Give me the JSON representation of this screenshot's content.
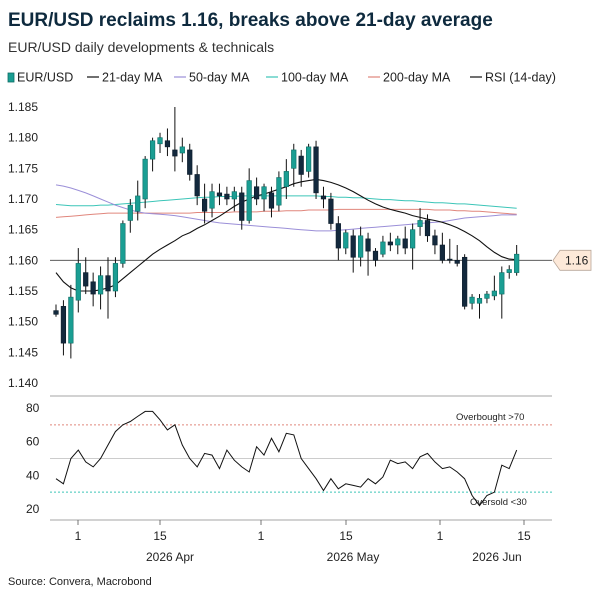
{
  "title": "EUR/USD reclaims 1.16, breaks above 21-day average",
  "subtitle": "EUR/USD daily developments & technicals",
  "source": "Source: Convera, Macrobond",
  "chart_data": [
    {
      "type": "candlestick",
      "legend": [
        {
          "name": "EUR/USD",
          "color": "#1a9e93",
          "kind": "box"
        },
        {
          "name": "21-day MA",
          "color": "#111111",
          "kind": "line"
        },
        {
          "name": "50-day MA",
          "color": "#9b8fd8",
          "kind": "line"
        },
        {
          "name": "100-day MA",
          "color": "#3cc5b8",
          "kind": "line"
        },
        {
          "name": "200-day MA",
          "color": "#e0867c",
          "kind": "line"
        },
        {
          "name": "RSI (14-day)",
          "color": "#111111",
          "kind": "line"
        }
      ],
      "y_ticks": [
        "1.185",
        "1.180",
        "1.175",
        "1.170",
        "1.165",
        "1.160",
        "1.155",
        "1.150",
        "1.145",
        "1.140"
      ],
      "ylim": [
        1.14,
        1.185
      ],
      "reference_line": 1.16,
      "last_value_label": "1.16",
      "candles": [
        {
          "o": 1.1518,
          "h": 1.1528,
          "l": 1.1508,
          "c": 1.1512
        },
        {
          "o": 1.1525,
          "h": 1.1535,
          "l": 1.1445,
          "c": 1.1465
        },
        {
          "o": 1.1465,
          "h": 1.156,
          "l": 1.144,
          "c": 1.154
        },
        {
          "o": 1.1535,
          "h": 1.162,
          "l": 1.1515,
          "c": 1.1595
        },
        {
          "o": 1.158,
          "h": 1.1605,
          "l": 1.1545,
          "c": 1.1558
        },
        {
          "o": 1.1565,
          "h": 1.158,
          "l": 1.1525,
          "c": 1.1545
        },
        {
          "o": 1.1545,
          "h": 1.159,
          "l": 1.152,
          "c": 1.1575
        },
        {
          "o": 1.1575,
          "h": 1.1605,
          "l": 1.1505,
          "c": 1.155
        },
        {
          "o": 1.155,
          "h": 1.1605,
          "l": 1.154,
          "c": 1.1595
        },
        {
          "o": 1.1595,
          "h": 1.1665,
          "l": 1.1588,
          "c": 1.166
        },
        {
          "o": 1.1665,
          "h": 1.17,
          "l": 1.1645,
          "c": 1.169
        },
        {
          "o": 1.168,
          "h": 1.173,
          "l": 1.1665,
          "c": 1.1705
        },
        {
          "o": 1.17,
          "h": 1.177,
          "l": 1.1685,
          "c": 1.1765
        },
        {
          "o": 1.1765,
          "h": 1.18,
          "l": 1.1745,
          "c": 1.1795
        },
        {
          "o": 1.179,
          "h": 1.1808,
          "l": 1.1775,
          "c": 1.18
        },
        {
          "o": 1.1795,
          "h": 1.1815,
          "l": 1.177,
          "c": 1.1785
        },
        {
          "o": 1.178,
          "h": 1.185,
          "l": 1.1745,
          "c": 1.177
        },
        {
          "o": 1.1775,
          "h": 1.18,
          "l": 1.176,
          "c": 1.1785
        },
        {
          "o": 1.178,
          "h": 1.179,
          "l": 1.173,
          "c": 1.174
        },
        {
          "o": 1.174,
          "h": 1.1755,
          "l": 1.169,
          "c": 1.1705
        },
        {
          "o": 1.17,
          "h": 1.1725,
          "l": 1.166,
          "c": 1.168
        },
        {
          "o": 1.1685,
          "h": 1.1725,
          "l": 1.167,
          "c": 1.1712
        },
        {
          "o": 1.171,
          "h": 1.1725,
          "l": 1.169,
          "c": 1.1705
        },
        {
          "o": 1.1708,
          "h": 1.172,
          "l": 1.169,
          "c": 1.17
        },
        {
          "o": 1.17,
          "h": 1.172,
          "l": 1.168,
          "c": 1.1712
        },
        {
          "o": 1.171,
          "h": 1.172,
          "l": 1.165,
          "c": 1.1665
        },
        {
          "o": 1.1665,
          "h": 1.175,
          "l": 1.166,
          "c": 1.173
        },
        {
          "o": 1.172,
          "h": 1.1735,
          "l": 1.169,
          "c": 1.17
        },
        {
          "o": 1.17,
          "h": 1.1725,
          "l": 1.168,
          "c": 1.172
        },
        {
          "o": 1.171,
          "h": 1.172,
          "l": 1.167,
          "c": 1.1685
        },
        {
          "o": 1.169,
          "h": 1.1745,
          "l": 1.168,
          "c": 1.1735
        },
        {
          "o": 1.172,
          "h": 1.1765,
          "l": 1.17,
          "c": 1.1745
        },
        {
          "o": 1.175,
          "h": 1.179,
          "l": 1.172,
          "c": 1.178
        },
        {
          "o": 1.177,
          "h": 1.178,
          "l": 1.172,
          "c": 1.174
        },
        {
          "o": 1.1745,
          "h": 1.179,
          "l": 1.1735,
          "c": 1.1785
        },
        {
          "o": 1.1785,
          "h": 1.1795,
          "l": 1.17,
          "c": 1.171
        },
        {
          "o": 1.1705,
          "h": 1.172,
          "l": 1.1685,
          "c": 1.17
        },
        {
          "o": 1.17,
          "h": 1.171,
          "l": 1.165,
          "c": 1.166
        },
        {
          "o": 1.166,
          "h": 1.1672,
          "l": 1.16,
          "c": 1.162
        },
        {
          "o": 1.162,
          "h": 1.165,
          "l": 1.161,
          "c": 1.1645
        },
        {
          "o": 1.164,
          "h": 1.165,
          "l": 1.158,
          "c": 1.1605
        },
        {
          "o": 1.1605,
          "h": 1.1655,
          "l": 1.159,
          "c": 1.164
        },
        {
          "o": 1.1635,
          "h": 1.1645,
          "l": 1.1575,
          "c": 1.1615
        },
        {
          "o": 1.1615,
          "h": 1.162,
          "l": 1.159,
          "c": 1.16
        },
        {
          "o": 1.161,
          "h": 1.164,
          "l": 1.1605,
          "c": 1.163
        },
        {
          "o": 1.163,
          "h": 1.1645,
          "l": 1.1615,
          "c": 1.1625
        },
        {
          "o": 1.1625,
          "h": 1.164,
          "l": 1.161,
          "c": 1.1635
        },
        {
          "o": 1.1635,
          "h": 1.1655,
          "l": 1.161,
          "c": 1.162
        },
        {
          "o": 1.162,
          "h": 1.166,
          "l": 1.1585,
          "c": 1.165
        },
        {
          "o": 1.1655,
          "h": 1.1685,
          "l": 1.164,
          "c": 1.1665
        },
        {
          "o": 1.1665,
          "h": 1.1675,
          "l": 1.163,
          "c": 1.164
        },
        {
          "o": 1.164,
          "h": 1.165,
          "l": 1.161,
          "c": 1.1625
        },
        {
          "o": 1.1625,
          "h": 1.1645,
          "l": 1.1595,
          "c": 1.16
        },
        {
          "o": 1.1602,
          "h": 1.1635,
          "l": 1.1595,
          "c": 1.16
        },
        {
          "o": 1.16,
          "h": 1.1625,
          "l": 1.159,
          "c": 1.1595
        },
        {
          "o": 1.1605,
          "h": 1.161,
          "l": 1.152,
          "c": 1.1525
        },
        {
          "o": 1.153,
          "h": 1.1545,
          "l": 1.152,
          "c": 1.154
        },
        {
          "o": 1.153,
          "h": 1.1545,
          "l": 1.1505,
          "c": 1.1538
        },
        {
          "o": 1.1538,
          "h": 1.155,
          "l": 1.153,
          "c": 1.1545
        },
        {
          "o": 1.1542,
          "h": 1.1575,
          "l": 1.1535,
          "c": 1.155
        },
        {
          "o": 1.1545,
          "h": 1.159,
          "l": 1.1505,
          "c": 1.158
        },
        {
          "o": 1.158,
          "h": 1.1592,
          "l": 1.157,
          "c": 1.1585
        },
        {
          "o": 1.158,
          "h": 1.1625,
          "l": 1.1575,
          "c": 1.161
        }
      ],
      "ma21": [
        1.158,
        1.1565,
        1.1555,
        1.155,
        1.155,
        1.155,
        1.1552,
        1.1555,
        1.156,
        1.157,
        1.158,
        1.159,
        1.16,
        1.161,
        1.1618,
        1.1625,
        1.1632,
        1.164,
        1.1645,
        1.1652,
        1.1658,
        1.1665,
        1.1672,
        1.168,
        1.1688,
        1.1695,
        1.17,
        1.1705,
        1.1708,
        1.1712,
        1.1716,
        1.172,
        1.1725,
        1.1728,
        1.173,
        1.1732,
        1.173,
        1.1727,
        1.1723,
        1.1718,
        1.1712,
        1.1705,
        1.1698,
        1.1692,
        1.1687,
        1.1683,
        1.168,
        1.1677,
        1.1673,
        1.167,
        1.1667,
        1.1665,
        1.1662,
        1.1658,
        1.1653,
        1.1647,
        1.164,
        1.1632,
        1.1622,
        1.1613,
        1.1606,
        1.1602,
        1.1601
      ],
      "ma50": [
        1.1723,
        1.1721,
        1.1718,
        1.1714,
        1.171,
        1.1705,
        1.17,
        1.1695,
        1.169,
        1.1686,
        1.1682,
        1.1679,
        1.1677,
        1.1676,
        1.1675,
        1.1674,
        1.1673,
        1.1671,
        1.1669,
        1.1667,
        1.1665,
        1.1663,
        1.1661,
        1.166,
        1.1659,
        1.1658,
        1.1657,
        1.1656,
        1.1655,
        1.1654,
        1.1653,
        1.1652,
        1.1651,
        1.165,
        1.1649,
        1.1648,
        1.1648,
        1.1648,
        1.1649,
        1.165,
        1.1651,
        1.1652,
        1.1653,
        1.1654,
        1.1655,
        1.1656,
        1.1657,
        1.1658,
        1.1659,
        1.166,
        1.1661,
        1.1662,
        1.1663,
        1.1665,
        1.1667,
        1.1669,
        1.167,
        1.1671,
        1.1672,
        1.1673,
        1.1674,
        1.1674,
        1.1674
      ],
      "ma100": [
        1.1691,
        1.169,
        1.1689,
        1.1689,
        1.1689,
        1.1689,
        1.169,
        1.169,
        1.1691,
        1.1692,
        1.1693,
        1.1694,
        1.1695,
        1.1696,
        1.1697,
        1.1698,
        1.1699,
        1.17,
        1.1701,
        1.1702,
        1.1703,
        1.1703,
        1.1704,
        1.1704,
        1.1704,
        1.1705,
        1.1705,
        1.1705,
        1.1705,
        1.1705,
        1.1705,
        1.1705,
        1.1705,
        1.1705,
        1.1705,
        1.1705,
        1.1704,
        1.1704,
        1.1703,
        1.1703,
        1.1702,
        1.1702,
        1.1701,
        1.17,
        1.1699,
        1.1699,
        1.1698,
        1.1697,
        1.1697,
        1.1696,
        1.1695,
        1.1694,
        1.1694,
        1.1693,
        1.1692,
        1.1692,
        1.1691,
        1.169,
        1.1689,
        1.1688,
        1.1687,
        1.1686,
        1.1685
      ],
      "ma200": [
        1.167,
        1.1671,
        1.1672,
        1.1673,
        1.1674,
        1.1675,
        1.1676,
        1.1677,
        1.1677,
        1.1677,
        1.1677,
        1.1677,
        1.1677,
        1.1677,
        1.1677,
        1.1677,
        1.1677,
        1.1677,
        1.1677,
        1.1678,
        1.1678,
        1.1678,
        1.1678,
        1.1678,
        1.1679,
        1.1679,
        1.1679,
        1.1679,
        1.168,
        1.168,
        1.168,
        1.1681,
        1.1681,
        1.1681,
        1.1682,
        1.1682,
        1.1682,
        1.1682,
        1.1683,
        1.1683,
        1.1683,
        1.1683,
        1.1683,
        1.1683,
        1.1683,
        1.1683,
        1.1683,
        1.1683,
        1.1683,
        1.1683,
        1.1683,
        1.1682,
        1.1682,
        1.1682,
        1.1681,
        1.1681,
        1.168,
        1.168,
        1.1679,
        1.1678,
        1.1677,
        1.1676,
        1.1675
      ]
    },
    {
      "type": "line",
      "name": "RSI (14-day)",
      "y_ticks": [
        "80",
        "60",
        "40",
        "20"
      ],
      "ylim": [
        17,
        85
      ],
      "overbought": {
        "value": 70,
        "label": "Overbought >70",
        "color": "#e0867c"
      },
      "oversold": {
        "value": 30,
        "label": "Oversold <30",
        "color": "#3cc5b8"
      },
      "values": [
        38,
        35,
        50,
        55,
        48,
        45,
        50,
        58,
        66,
        70,
        72,
        75,
        78,
        78,
        73,
        67,
        70,
        58,
        50,
        45,
        53,
        52,
        44,
        55,
        49,
        45,
        42,
        57,
        52,
        62,
        54,
        65,
        64,
        50,
        44,
        38,
        31,
        38,
        32,
        35,
        34,
        33,
        38,
        35,
        39,
        49,
        47,
        48,
        44,
        51,
        53,
        48,
        44,
        45,
        42,
        38,
        28,
        22,
        28,
        30,
        46,
        44,
        55
      ]
    },
    {
      "x_ticks": [
        "1",
        "15",
        "1",
        "15",
        "1",
        "15"
      ],
      "x_month_labels": [
        "2026 Apr",
        "2026 May",
        "2026 Jun"
      ]
    }
  ]
}
